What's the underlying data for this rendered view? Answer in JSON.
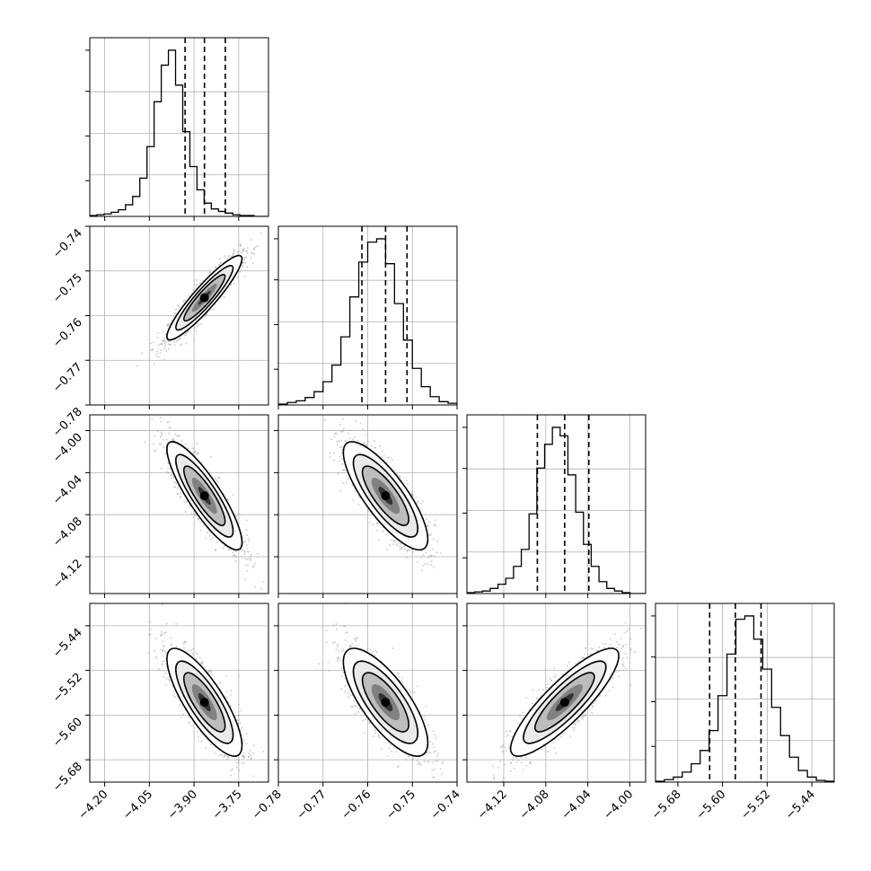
{
  "chart_data": {
    "type": "corner",
    "grid": true,
    "colors": {
      "hist": "#000000",
      "contour": "#000000",
      "quantile": "#000000",
      "scatter": "#9a9a9a",
      "grid": "#b0b0b0"
    },
    "parameters": [
      {
        "range": [
          -4.25,
          -3.65
        ],
        "quantiles": [
          -3.93,
          -3.865,
          -3.795
        ],
        "ticks": [
          "−4.20",
          "−4.05",
          "−3.90",
          "−3.75"
        ],
        "tick_values": [
          -4.2,
          -4.05,
          -3.9,
          -3.75
        ]
      },
      {
        "range": [
          -0.78,
          -0.74
        ],
        "quantiles": [
          -0.7613,
          -0.756,
          -0.7512
        ],
        "ticks": [
          "−0.78",
          "−0.77",
          "−0.76",
          "−0.75",
          "−0.74"
        ],
        "tick_values": [
          -0.78,
          -0.77,
          -0.76,
          -0.75,
          -0.74
        ]
      },
      {
        "range": [
          -4.155,
          -3.985
        ],
        "quantiles": [
          -4.088,
          -4.062,
          -4.039
        ],
        "ticks": [
          "−4.12",
          "−4.08",
          "−4.04",
          "−4.00"
        ],
        "tick_values": [
          -4.12,
          -4.08,
          -4.04,
          -4.0
        ]
      },
      {
        "range": [
          -5.72,
          -5.4
        ],
        "quantiles": [
          -5.623,
          -5.577,
          -5.531
        ],
        "ticks": [
          "−5.68",
          "−5.60",
          "−5.52",
          "−5.44"
        ],
        "tick_values": [
          -5.68,
          -5.6,
          -5.52,
          -5.44
        ]
      }
    ],
    "marginals": [
      {
        "param": 0,
        "counts": [
          1,
          2,
          3,
          5,
          8,
          14,
          24,
          46,
          84,
          138,
          182,
          200,
          158,
          102,
          60,
          32,
          16,
          9,
          6,
          4,
          2,
          1,
          1,
          0,
          0
        ]
      },
      {
        "param": 1,
        "counts": [
          1,
          3,
          5,
          9,
          16,
          28,
          48,
          82,
          130,
          172,
          196,
          200,
          170,
          122,
          78,
          44,
          22,
          10,
          4,
          2
        ]
      },
      {
        "param": 2,
        "counts": [
          1,
          2,
          3,
          6,
          11,
          18,
          32,
          52,
          94,
          148,
          176,
          196,
          186,
          140,
          96,
          58,
          32,
          14,
          6,
          3,
          1,
          0,
          0
        ]
      },
      {
        "param": 3,
        "counts": [
          1,
          3,
          6,
          12,
          22,
          38,
          62,
          104,
          154,
          196,
          200,
          172,
          136,
          90,
          56,
          30,
          14,
          6,
          2,
          1
        ]
      }
    ],
    "pairs": [
      {
        "x_param": 0,
        "y_param": 1,
        "rho": 0.92,
        "center": [
          -3.865,
          -0.756
        ],
        "sd": [
          0.06,
          0.0045
        ]
      },
      {
        "x_param": 0,
        "y_param": 2,
        "rho": -0.86,
        "center": [
          -3.865,
          -4.062
        ],
        "sd": [
          0.06,
          0.0245
        ]
      },
      {
        "x_param": 1,
        "y_param": 2,
        "rho": -0.8,
        "center": [
          -0.756,
          -4.062
        ],
        "sd": [
          0.0045,
          0.0245
        ]
      },
      {
        "x_param": 0,
        "y_param": 3,
        "rho": -0.8,
        "center": [
          -3.865,
          -5.577
        ],
        "sd": [
          0.06,
          0.046
        ]
      },
      {
        "x_param": 1,
        "y_param": 3,
        "rho": -0.75,
        "center": [
          -0.756,
          -5.577
        ],
        "sd": [
          0.0045,
          0.046
        ]
      },
      {
        "x_param": 2,
        "y_param": 3,
        "rho": 0.86,
        "center": [
          -4.062,
          -5.577
        ],
        "sd": [
          0.0245,
          0.046
        ]
      }
    ]
  }
}
